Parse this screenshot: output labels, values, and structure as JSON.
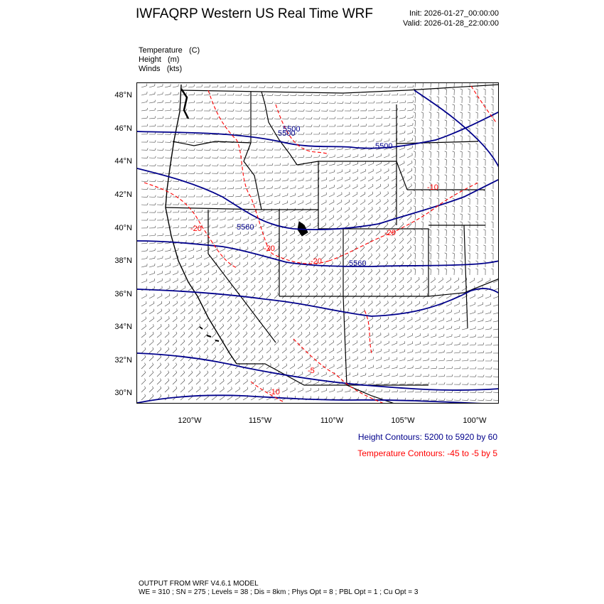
{
  "header": {
    "title": "IWFAQRP Western US Real Time WRF",
    "init": "Init: 2026-01-27_00:00:00",
    "valid": "Valid: 2026-01-28_22:00:00"
  },
  "fields": [
    {
      "name": "Temperature",
      "unit": "(C)"
    },
    {
      "name": "Height",
      "unit": "(m)"
    },
    {
      "name": "Winds",
      "unit": "(kts)"
    }
  ],
  "map": {
    "lat_labels": [
      "48°N",
      "46°N",
      "44°N",
      "42°N",
      "40°N",
      "38°N",
      "36°N",
      "34°N",
      "32°N",
      "30°N"
    ],
    "lon_labels": [
      "120°W",
      "115°W",
      "110°W",
      "105°W",
      "100°W"
    ],
    "height_contour_labels": [
      "5500",
      "5500",
      "5560",
      "5560",
      "5500"
    ],
    "temperature_contour_labels": [
      "-20",
      "-20",
      "-20",
      "-20",
      "-10",
      "-5",
      "-10"
    ],
    "colors": {
      "height_contours": "#00008b",
      "temperature_contours": "#ff0000",
      "wind_barbs": "#000000",
      "boundaries": "#000000"
    }
  },
  "legend": {
    "height": "Height Contours: 5200 to 5920 by 60",
    "temperature": "Temperature Contours: -45 to -5 by 5"
  },
  "footer": {
    "line1": "OUTPUT FROM WRF V4.6.1 MODEL",
    "line2": "WE = 310 ; SN = 275 ; Levels = 38 ; Dis = 8km ; Phys Opt = 8 ; PBL Opt = 1 ; Cu Opt = 3"
  }
}
